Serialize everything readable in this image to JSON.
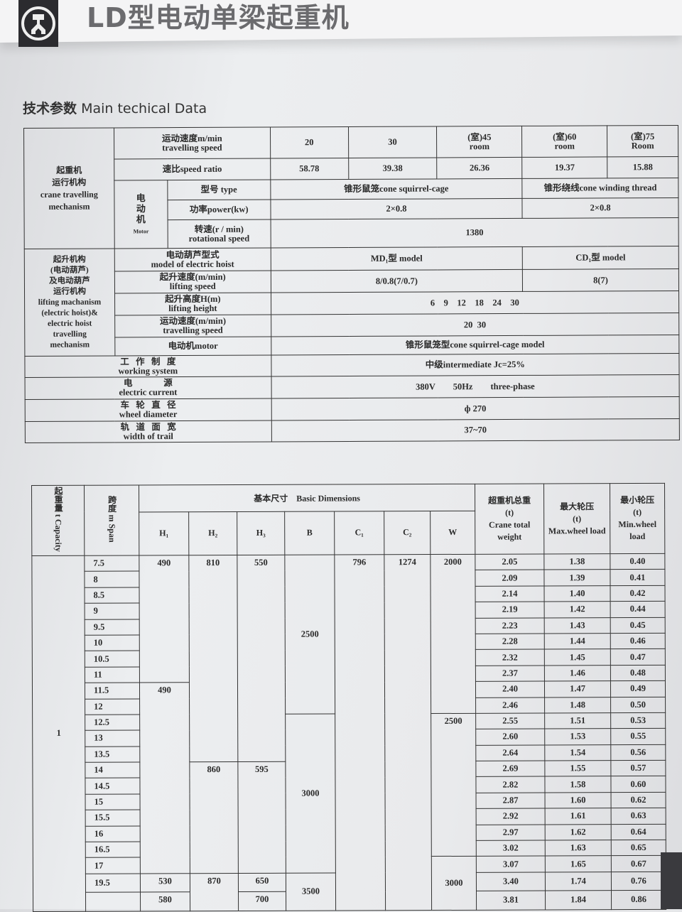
{
  "header": {
    "title": "LD型电动单梁起重机",
    "subtitle_cn": "技术参数",
    "subtitle_en": "Main techical Data",
    "logo_icon": "company-logo"
  },
  "spec": {
    "travel": {
      "category": "起重机\n运行机构\ncrane travelling\nmechanism",
      "speed_label": "运动速度m/min\ntravelling speed",
      "speeds": [
        "20",
        "30",
        "(室)45\nroom",
        "(室)60\nroom",
        "(室)75\nRoom"
      ],
      "ratio_label": "速比speed ratio",
      "ratios": [
        "58.78",
        "39.38",
        "26.36",
        "19.37",
        "15.88"
      ],
      "motor_label": "电\n动\n机",
      "motor_label_en": "Motor",
      "type_label": "型号 type",
      "type_a": "锥形鼠笼cone squirrel-cage",
      "type_b": "锥形绕线cone winding thread",
      "power_label": "功率power(kw)",
      "power_a": "2×0.8",
      "power_b": "2×0.8",
      "rot_label": "转速(r / min)\nrotational speed",
      "rot": "1380"
    },
    "lifting": {
      "category": "起升机构\n(电动葫芦)\n及电动葫芦\n运行机构\nlifting machanism\n(electric hoist)&\nelectric hoist\ntravelling\nmechanism",
      "model_label": "电动葫芦型式\nmodel of electric hoist",
      "model_a": "MD₁型 model",
      "model_b": "CD₁型 model",
      "speed_label": "起升速度(m/min)\nlifting speed",
      "speed_a": "8/0.8(7/0.7)",
      "speed_b": "8(7)",
      "height_label": "起升高度H(m)\nlifting height",
      "height": "6    9    12    18    24    30",
      "travel_label": "运动速度(m/min)\ntravelling speed",
      "travel": "20  30",
      "motor_label": "电动机motor",
      "motor": "锥形鼠笼型cone squirrel-cage model"
    },
    "general": [
      {
        "label": "工   作   制   度\nworking system",
        "value": "中级intermediate  Jc=25%"
      },
      {
        "label": "电              源\nelectric current",
        "value": "380V        50Hz        three-phase"
      },
      {
        "label": "车   轮   直   径\nwheel diameter",
        "value": "ф 270"
      },
      {
        "label": "轨   道   面   宽\nwidth of trail",
        "value": "37~70"
      }
    ]
  },
  "dims": {
    "headers": {
      "capacity": "起重量 t Capacity",
      "span": "跨度 m Span",
      "basic": "基本尺寸    Basic Dimensions",
      "cols": [
        "H₁",
        "H₂",
        "H₃",
        "B",
        "C₁",
        "C₂",
        "W"
      ],
      "weight": "超重机总重\n(t)\nCrane total weight",
      "maxload": "最大轮压\n(t)\nMax.wheel load",
      "minload": "最小轮压\n(t)\nMin.wheel load"
    },
    "capacity": "1",
    "spans": [
      "7.5",
      "8",
      "8.5",
      "9",
      "9.5",
      "10",
      "10.5",
      "11",
      "11.5",
      "12",
      "12.5",
      "13",
      "13.5",
      "14",
      "14.5",
      "15",
      "15.5",
      "16",
      "16.5",
      "17",
      "19.5",
      ""
    ],
    "groups": {
      "H1": [
        {
          "v": "490",
          "n": 8
        },
        {
          "v": "490",
          "n": 12
        },
        {
          "v": "530",
          "n": 1
        },
        {
          "v": "580",
          "n": 1
        }
      ],
      "H2": [
        {
          "v": "810",
          "n": 13
        },
        {
          "v": "860",
          "n": 7
        },
        {
          "v": "870",
          "n": 2
        }
      ],
      "H3": [
        {
          "v": "550",
          "n": 13
        },
        {
          "v": "595",
          "n": 7
        },
        {
          "v": "650",
          "n": 1
        },
        {
          "v": "700",
          "n": 1
        }
      ],
      "B": [
        {
          "v": "2500",
          "n": 10
        },
        {
          "v": "3000",
          "n": 10
        },
        {
          "v": "3500",
          "n": 2
        }
      ],
      "C1": [
        {
          "v": "796",
          "n": 22
        }
      ],
      "C2": [
        {
          "v": "1274",
          "n": 22
        }
      ],
      "W": [
        {
          "v": "2000",
          "n": 10
        },
        {
          "v": "2500",
          "n": 9
        },
        {
          "v": "3000",
          "n": 3
        }
      ]
    },
    "weight": [
      "2.05",
      "2.09",
      "2.14",
      "2.19",
      "2.23",
      "2.28",
      "2.32",
      "2.37",
      "2.40",
      "2.46",
      "2.55",
      "2.60",
      "2.64",
      "2.69",
      "2.82",
      "2.87",
      "2.92",
      "2.97",
      "3.02",
      "3.07",
      "3.40",
      "3.81"
    ],
    "maxload": [
      "1.38",
      "1.39",
      "1.40",
      "1.42",
      "1.43",
      "1.44",
      "1.45",
      "1.46",
      "1.47",
      "1.48",
      "1.51",
      "1.53",
      "1.54",
      "1.55",
      "1.58",
      "1.60",
      "1.61",
      "1.62",
      "1.63",
      "1.65",
      "1.74",
      "1.84"
    ],
    "minload": [
      "0.40",
      "0.41",
      "0.42",
      "0.44",
      "0.45",
      "0.46",
      "0.47",
      "0.48",
      "0.49",
      "0.50",
      "0.53",
      "0.55",
      "0.56",
      "0.57",
      "0.60",
      "0.62",
      "0.63",
      "0.64",
      "0.65",
      "0.67",
      "0.76",
      "0.86"
    ]
  }
}
